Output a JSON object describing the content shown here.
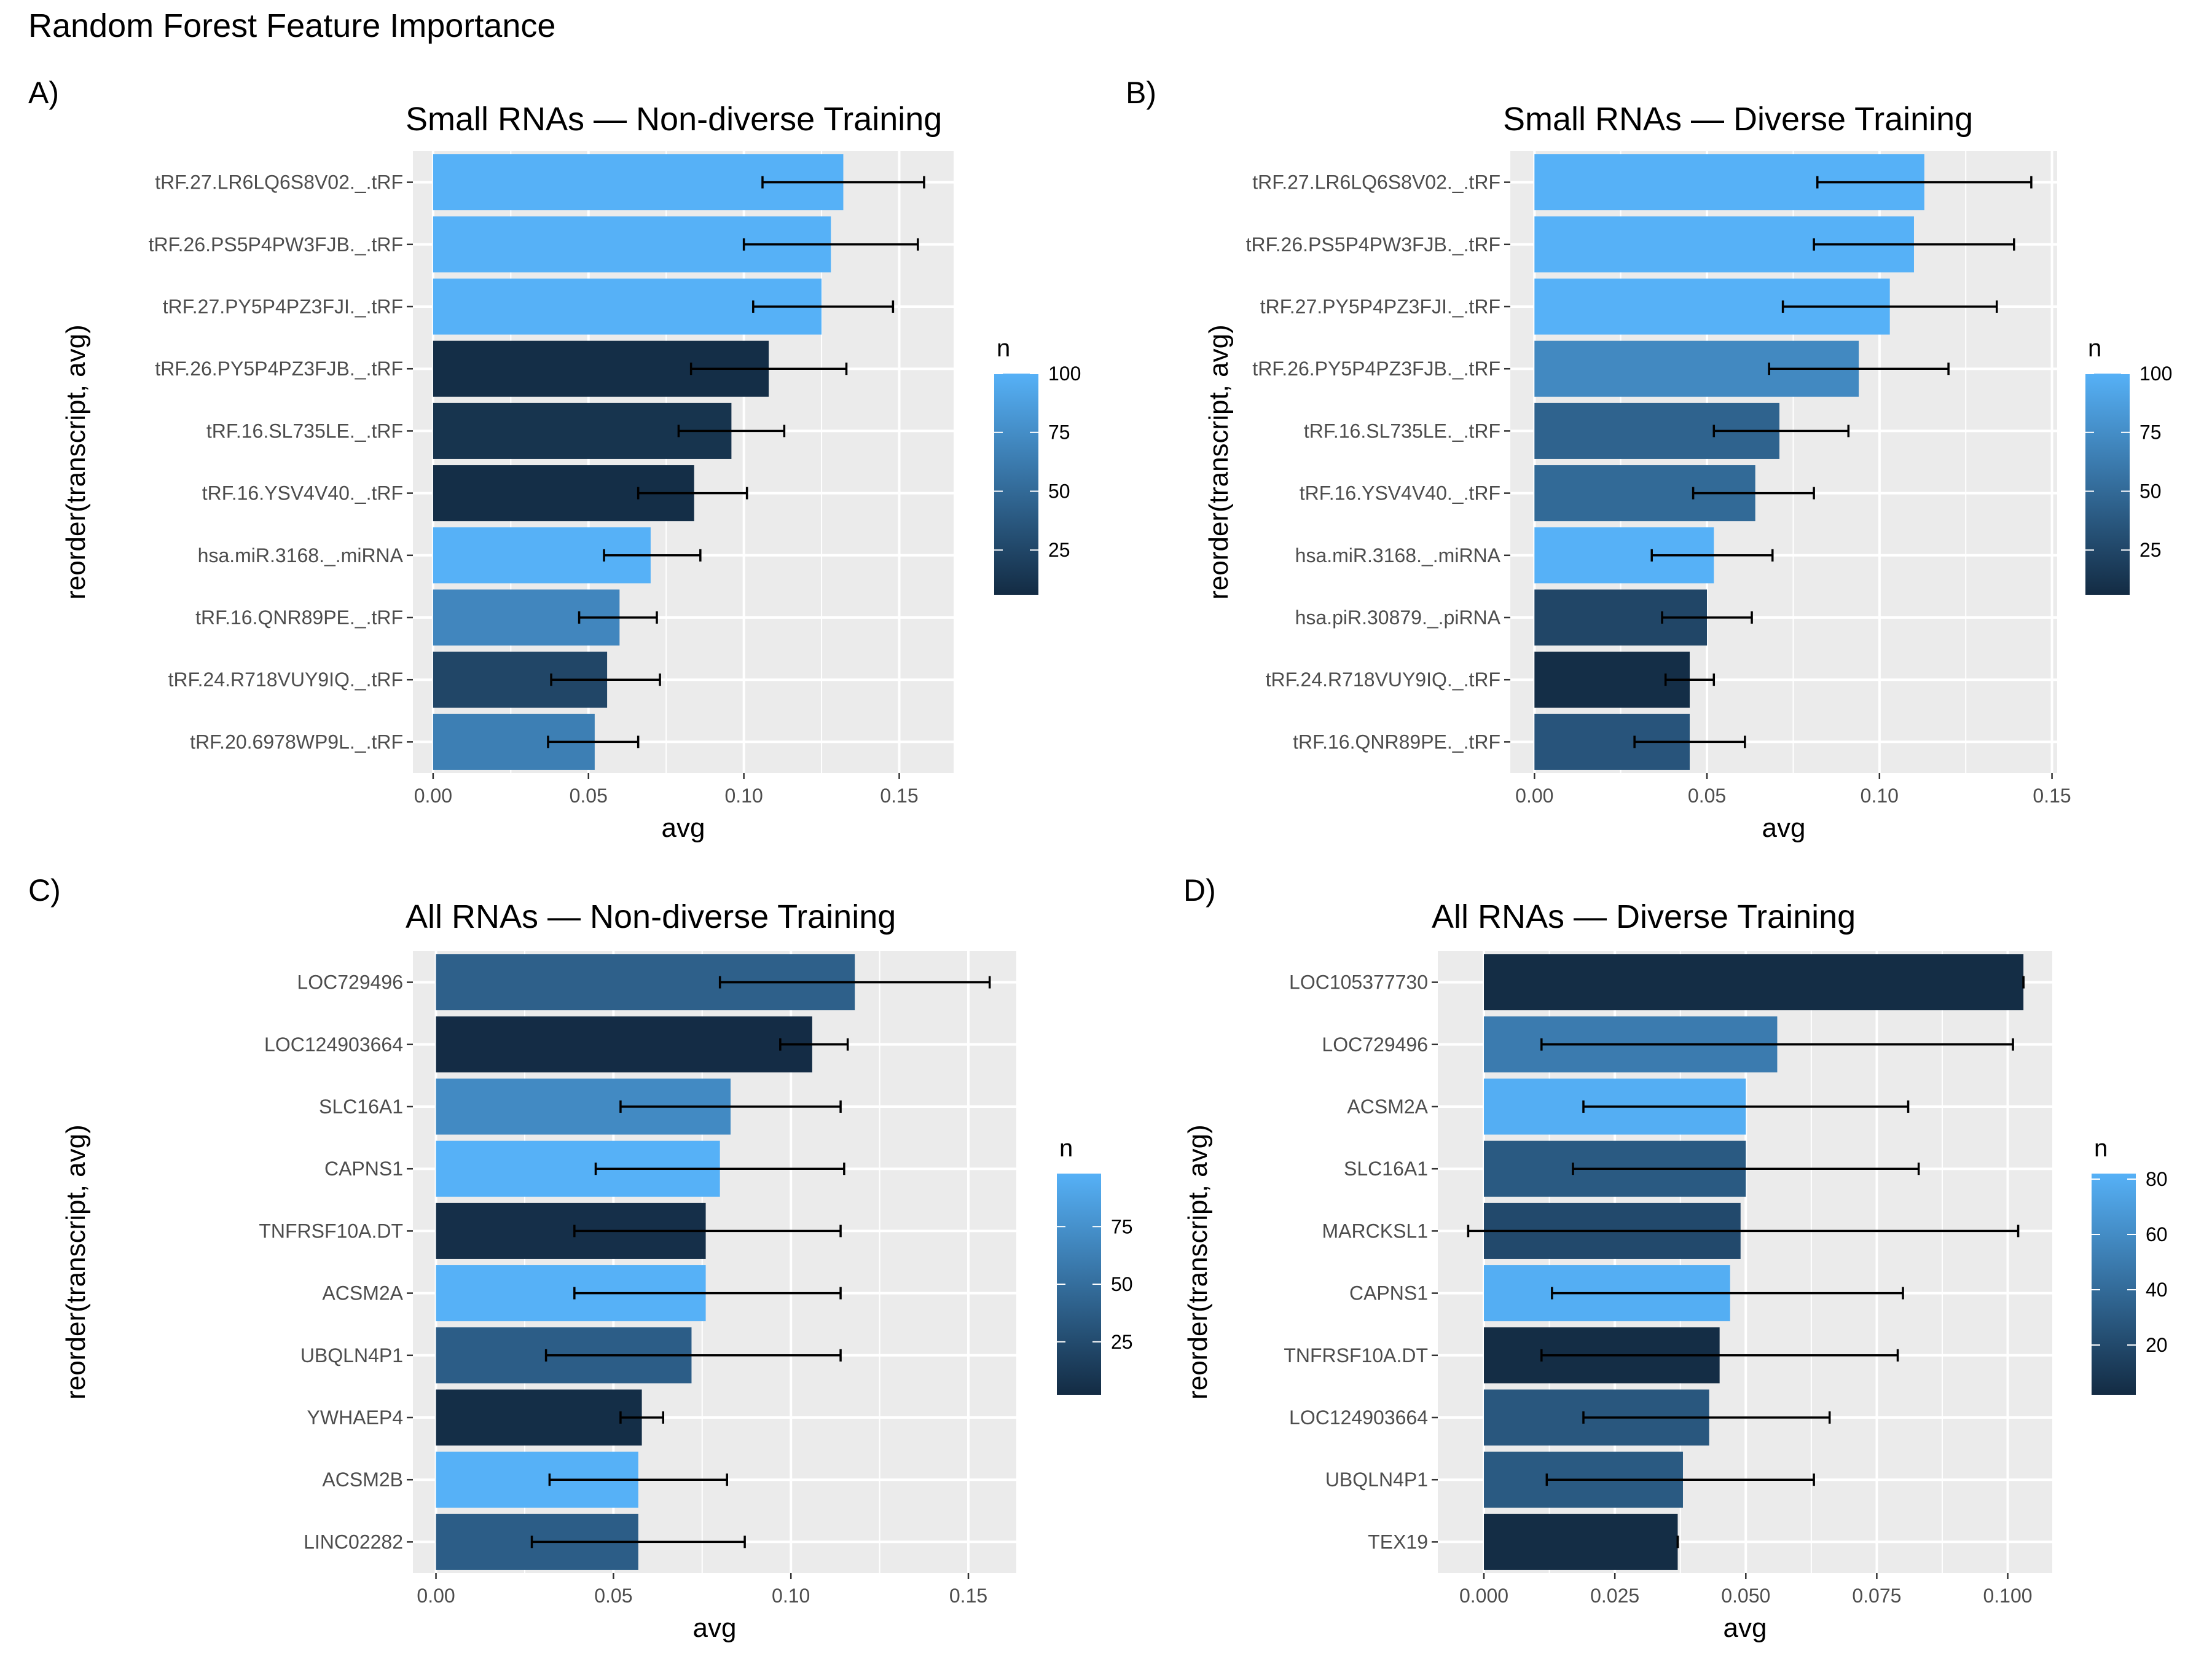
{
  "figure_title": "Random Forest Feature Importance",
  "colors": {
    "low": "#132B43",
    "high": "#56B1F7",
    "panel_bg": "#EBEBEB",
    "grid": "#FFFFFF",
    "error_bar": "#000000"
  },
  "chart_data": [
    {
      "letter": "A)",
      "type": "bar",
      "orientation": "horizontal",
      "title": "Small RNAs — Non-diverse Training",
      "xlabel": "avg",
      "ylabel": "reorder(transcript, avg)",
      "xlim": [
        -0.0065,
        0.1675
      ],
      "xticks": [
        0,
        0.05,
        0.1,
        0.15
      ],
      "xtick_labels": [
        "0.00",
        "0.05",
        "0.10",
        "0.15"
      ],
      "legend": {
        "title": "n",
        "ticks": [
          25,
          50,
          75,
          100
        ],
        "range": [
          6,
          100
        ],
        "position": "right"
      },
      "categories": [
        "tRF.27.LR6LQ6S8V02._.tRF",
        "tRF.26.PS5P4PW3FJB._.tRF",
        "tRF.27.PY5P4PZ3FJI._.tRF",
        "tRF.26.PY5P4PZ3FJB._.tRF",
        "tRF.16.SL735LE._.tRF",
        "tRF.16.YSV4V40._.tRF",
        "hsa.miR.3168._.miRNA",
        "tRF.16.QNR89PE._.tRF",
        "tRF.24.R718VUY9IQ._.tRF",
        "tRF.20.6978WP9L._.tRF"
      ],
      "values": [
        0.132,
        0.128,
        0.125,
        0.108,
        0.096,
        0.084,
        0.07,
        0.06,
        0.056,
        0.052
      ],
      "err_low": [
        0.106,
        0.1,
        0.103,
        0.083,
        0.079,
        0.066,
        0.055,
        0.047,
        0.038,
        0.037
      ],
      "err_high": [
        0.158,
        0.156,
        0.148,
        0.133,
        0.113,
        0.101,
        0.086,
        0.072,
        0.073,
        0.066
      ],
      "n": [
        100,
        100,
        100,
        8,
        12,
        8,
        100,
        70,
        25,
        65
      ]
    },
    {
      "letter": "B)",
      "type": "bar",
      "orientation": "horizontal",
      "title": "Small RNAs — Diverse Training",
      "xlabel": "avg",
      "ylabel": "reorder(transcript, avg)",
      "xlim": [
        -0.007,
        0.1515
      ],
      "xticks": [
        0,
        0.05,
        0.1,
        0.15
      ],
      "xtick_labels": [
        "0.00",
        "0.05",
        "0.10",
        "0.15"
      ],
      "legend": {
        "title": "n",
        "ticks": [
          25,
          50,
          75,
          100
        ],
        "range": [
          6,
          100
        ],
        "position": "right"
      },
      "categories": [
        "tRF.27.LR6LQ6S8V02._.tRF",
        "tRF.26.PS5P4PW3FJB._.tRF",
        "tRF.27.PY5P4PZ3FJI._.tRF",
        "tRF.26.PY5P4PZ3FJB._.tRF",
        "tRF.16.SL735LE._.tRF",
        "tRF.16.YSV4V40._.tRF",
        "hsa.miR.3168._.miRNA",
        "hsa.piR.30879._.piRNA",
        "tRF.24.R718VUY9IQ._.tRF",
        "tRF.16.QNR89PE._.tRF"
      ],
      "values": [
        0.113,
        0.11,
        0.103,
        0.094,
        0.071,
        0.064,
        0.052,
        0.05,
        0.045,
        0.045
      ],
      "err_low": [
        0.082,
        0.081,
        0.072,
        0.068,
        0.052,
        0.046,
        0.034,
        0.037,
        0.038,
        0.029
      ],
      "err_high": [
        0.144,
        0.139,
        0.134,
        0.12,
        0.091,
        0.081,
        0.069,
        0.063,
        0.052,
        0.061
      ],
      "n": [
        100,
        100,
        100,
        72,
        45,
        50,
        100,
        25,
        8,
        35
      ]
    },
    {
      "letter": "C)",
      "type": "bar",
      "orientation": "horizontal",
      "title": "All RNAs — Non-diverse Training",
      "xlabel": "avg",
      "ylabel": "reorder(transcript, avg)",
      "xlim": [
        -0.0065,
        0.1635
      ],
      "xticks": [
        0,
        0.05,
        0.1,
        0.15
      ],
      "xtick_labels": [
        "0.00",
        "0.05",
        "0.10",
        "0.15"
      ],
      "legend": {
        "title": "n",
        "ticks": [
          25,
          50,
          75
        ],
        "range": [
          2,
          98
        ],
        "position": "right"
      },
      "categories": [
        "LOC729496",
        "LOC124903664",
        "SLC16A1",
        "CAPNS1",
        "TNFRSF10A.DT",
        "ACSM2A",
        "UBQLN4P1",
        "YWHAEP4",
        "ACSM2B",
        "LINC02282"
      ],
      "values": [
        0.118,
        0.106,
        0.083,
        0.08,
        0.076,
        0.076,
        0.072,
        0.058,
        0.057,
        0.057
      ],
      "err_low": [
        0.08,
        0.097,
        0.052,
        0.045,
        0.039,
        0.039,
        0.031,
        0.052,
        0.032,
        0.027
      ],
      "err_high": [
        0.156,
        0.116,
        0.114,
        0.115,
        0.114,
        0.114,
        0.114,
        0.064,
        0.082,
        0.087
      ],
      "n": [
        40,
        3,
        70,
        98,
        5,
        98,
        38,
        4,
        98,
        38
      ]
    },
    {
      "letter": "D)",
      "type": "bar",
      "orientation": "horizontal",
      "title": "All RNAs — Diverse Training",
      "xlabel": "avg",
      "ylabel": "reorder(transcript, avg)",
      "xlim": [
        -0.0088,
        0.1085
      ],
      "xticks": [
        0,
        0.025,
        0.05,
        0.075,
        0.1
      ],
      "xtick_labels": [
        "0.000",
        "0.025",
        "0.050",
        "0.075",
        "0.100"
      ],
      "legend": {
        "title": "n",
        "ticks": [
          20,
          40,
          60,
          80
        ],
        "range": [
          2,
          82
        ],
        "position": "right"
      },
      "categories": [
        "LOC105377730",
        "LOC729496",
        "ACSM2A",
        "SLC16A1",
        "MARCKSL1",
        "CAPNS1",
        "TNFRSF10A.DT",
        "LOC124903664",
        "UBQLN4P1",
        "TEX19"
      ],
      "values": [
        0.103,
        0.056,
        0.05,
        0.05,
        0.049,
        0.047,
        0.045,
        0.043,
        0.038,
        0.037
      ],
      "err_low": [
        0.103,
        0.011,
        0.019,
        0.017,
        -0.003,
        0.013,
        0.011,
        0.019,
        0.012,
        0.037
      ],
      "err_high": [
        0.103,
        0.101,
        0.081,
        0.083,
        0.102,
        0.08,
        0.079,
        0.066,
        0.063,
        0.037
      ],
      "n": [
        3,
        50,
        80,
        30,
        20,
        80,
        3,
        28,
        30,
        3
      ]
    }
  ]
}
